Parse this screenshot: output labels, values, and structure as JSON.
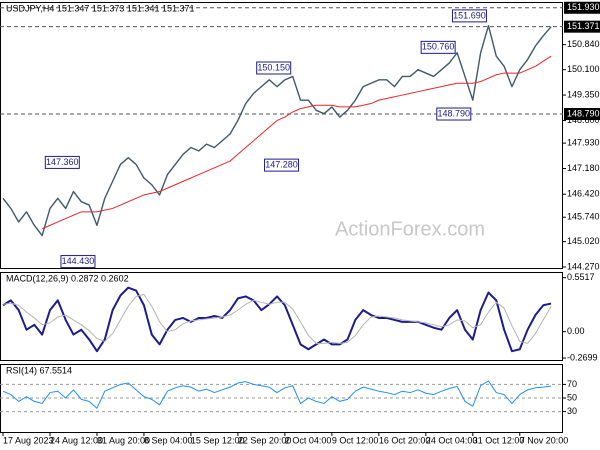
{
  "chart_data": [
    {
      "type": "line",
      "title": "USDJPY,H4  151.347 151.373 151.341 151.371",
      "watermark": "ActionForex.com",
      "series": [
        {
          "color": "#3d5a6e",
          "width": 1.4,
          "values": [
            146.3,
            146.0,
            145.6,
            145.9,
            145.5,
            145.2,
            146.0,
            146.3,
            146.0,
            146.5,
            146.2,
            146.1,
            145.5,
            146.3,
            146.8,
            147.3,
            147.5,
            147.3,
            146.9,
            146.7,
            146.4,
            147.0,
            147.3,
            147.6,
            147.8,
            147.7,
            147.9,
            147.8,
            148.0,
            148.2,
            148.6,
            149.1,
            149.4,
            149.6,
            149.8,
            149.6,
            149.8,
            149.9,
            149.2,
            149.2,
            148.9,
            148.8,
            149.0,
            148.7,
            148.9,
            149.2,
            149.6,
            149.7,
            149.8,
            149.8,
            149.6,
            149.9,
            149.9,
            150.1,
            150.0,
            149.9,
            150.1,
            150.3,
            150.6,
            149.9,
            149.2,
            150.6,
            151.4,
            150.5,
            150.2,
            149.6,
            150.1,
            150.4,
            150.8,
            151.1,
            151.371
          ]
        },
        {
          "color": "#e8262a",
          "width": 1,
          "values": [
            null,
            null,
            null,
            null,
            null,
            145.4,
            145.5,
            145.6,
            145.7,
            145.8,
            145.9,
            145.9,
            145.9,
            145.95,
            146.0,
            146.1,
            146.2,
            146.3,
            146.4,
            146.45,
            146.5,
            146.6,
            146.7,
            146.8,
            146.9,
            147.0,
            147.1,
            147.2,
            147.3,
            147.4,
            147.6,
            147.8,
            148.0,
            148.2,
            148.4,
            148.6,
            148.7,
            148.85,
            148.95,
            149.0,
            149.05,
            149.05,
            149.05,
            149.0,
            149.0,
            149.0,
            149.05,
            149.1,
            149.2,
            149.25,
            149.3,
            149.35,
            149.4,
            149.45,
            149.5,
            149.55,
            149.6,
            149.65,
            149.7,
            149.7,
            149.7,
            149.75,
            149.85,
            149.95,
            150.0,
            150.0,
            150.0,
            150.1,
            150.2,
            150.35,
            150.5
          ]
        }
      ],
      "ylim": [
        144.24,
        152.1
      ],
      "yticks": [
        {
          "value": 150.84,
          "label": "150.840"
        },
        {
          "value": 150.1,
          "label": "150.100"
        },
        {
          "value": 149.35,
          "label": "149.350"
        },
        {
          "value": 148.6,
          "label": "148.600"
        },
        {
          "value": 147.93,
          "label": "147.930"
        },
        {
          "value": 147.18,
          "label": "147.180"
        },
        {
          "value": 146.42,
          "label": "146.420"
        },
        {
          "value": 145.74,
          "label": "145.740"
        },
        {
          "value": 145.02,
          "label": "145.020"
        },
        {
          "value": 144.27,
          "label": "144.270"
        }
      ],
      "levels": [
        {
          "value": 151.93,
          "label": "151.930"
        },
        {
          "value": 151.371,
          "label": "151.371"
        },
        {
          "value": 148.79,
          "label": "148.790"
        }
      ],
      "annotations": [
        {
          "value": 151.69,
          "label": "151.690",
          "at": 62
        },
        {
          "value": 150.76,
          "label": "150.760",
          "at": 58
        },
        {
          "value": 150.15,
          "label": "150.150",
          "at": 37
        },
        {
          "value": 148.79,
          "label": "148.790",
          "at": 60
        },
        {
          "value": 147.36,
          "label": "147.360",
          "at": 10
        },
        {
          "value": 147.28,
          "label": "147.280",
          "at": 38
        },
        {
          "value": 144.43,
          "label": "144.430",
          "at": 12
        }
      ],
      "grid": false
    },
    {
      "type": "line",
      "title": "MACD(12,26,9) 0.2872 0.2602",
      "series": [
        {
          "color": "#1c1c8e",
          "width": 2,
          "values": [
            0.27,
            0.32,
            0.22,
            0.02,
            0.07,
            -0.03,
            0.22,
            0.32,
            0.12,
            -0.03,
            0.02,
            -0.08,
            -0.2,
            -0.08,
            0.22,
            0.37,
            0.45,
            0.42,
            0.27,
            -0.03,
            -0.13,
            0.02,
            0.12,
            0.14,
            0.1,
            0.14,
            0.14,
            0.16,
            0.14,
            0.22,
            0.34,
            0.36,
            0.32,
            0.22,
            0.28,
            0.36,
            0.27,
            0.07,
            -0.13,
            -0.18,
            -0.13,
            -0.08,
            -0.13,
            -0.13,
            -0.08,
            0.12,
            0.22,
            0.17,
            0.14,
            0.14,
            0.12,
            0.1,
            0.1,
            0.1,
            0.07,
            0.04,
            0.02,
            0.14,
            0.22,
            0.02,
            -0.08,
            0.22,
            0.4,
            0.32,
            0.02,
            -0.2,
            -0.18,
            0.02,
            0.17,
            0.27,
            0.2872
          ]
        },
        {
          "color": "#b4b4b4",
          "width": 1,
          "values": [
            0.28,
            0.29,
            0.27,
            0.2,
            0.14,
            0.07,
            0.09,
            0.15,
            0.17,
            0.12,
            0.07,
            0.01,
            -0.07,
            -0.1,
            -0.02,
            0.12,
            0.26,
            0.36,
            0.38,
            0.26,
            0.1,
            0.0,
            0.02,
            0.08,
            0.11,
            0.12,
            0.13,
            0.14,
            0.15,
            0.17,
            0.22,
            0.28,
            0.32,
            0.3,
            0.28,
            0.3,
            0.3,
            0.23,
            0.1,
            -0.04,
            -0.12,
            -0.12,
            -0.11,
            -0.12,
            -0.11,
            -0.04,
            0.07,
            0.15,
            0.16,
            0.15,
            0.14,
            0.12,
            0.11,
            0.1,
            0.09,
            0.07,
            0.05,
            0.07,
            0.12,
            0.11,
            0.04,
            0.07,
            0.2,
            0.3,
            0.24,
            0.06,
            -0.1,
            -0.12,
            -0.02,
            0.12,
            0.2602
          ]
        }
      ],
      "ylim": [
        -0.29,
        0.61
      ],
      "yticks": [
        0.5517,
        {
          "value": 0,
          "label": "0.00"
        },
        -0.2699
      ],
      "grid": false
    },
    {
      "type": "line",
      "title": "RSI(14) 67.5514",
      "categories": [
        "17 Aug 2023",
        null,
        null,
        null,
        null,
        null,
        "24 Aug 12:00",
        null,
        null,
        null,
        null,
        null,
        "31 Aug 20:00",
        null,
        null,
        null,
        null,
        null,
        "8 Sep 04:00",
        null,
        null,
        null,
        null,
        null,
        "15 Sep 12:00",
        null,
        null,
        null,
        null,
        null,
        "22 Sep 20:00",
        null,
        null,
        null,
        null,
        null,
        "2 Oct 04:00",
        null,
        null,
        null,
        null,
        null,
        "9 Oct 12:00",
        null,
        null,
        null,
        null,
        null,
        "16 Oct 20:00",
        null,
        null,
        null,
        null,
        null,
        "24 Oct 04:00",
        null,
        null,
        null,
        null,
        null,
        "31 Oct 12:00",
        null,
        null,
        null,
        null,
        null,
        "7 Nov 20:00",
        null,
        null,
        null,
        null
      ],
      "series": [
        {
          "color": "#1e90ff",
          "width": 1,
          "values": [
            60,
            55,
            45,
            52,
            45,
            42,
            58,
            60,
            50,
            62,
            48,
            45,
            35,
            60,
            65,
            70,
            72,
            62,
            52,
            48,
            40,
            60,
            65,
            68,
            66,
            60,
            63,
            58,
            62,
            66,
            72,
            74,
            70,
            68,
            66,
            58,
            65,
            68,
            42,
            50,
            45,
            42,
            52,
            45,
            48,
            60,
            66,
            63,
            60,
            58,
            55,
            60,
            58,
            62,
            57,
            55,
            60,
            64,
            67,
            45,
            38,
            68,
            75,
            58,
            55,
            42,
            55,
            62,
            65,
            66,
            67.5514
          ]
        }
      ],
      "ylim": [
        0,
        100
      ],
      "yticks": [
        70,
        50,
        30
      ],
      "grid": true
    }
  ]
}
